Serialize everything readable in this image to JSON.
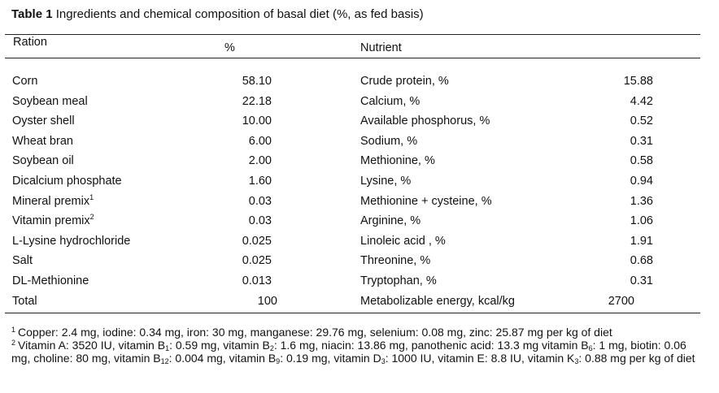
{
  "title": {
    "label": "Table 1",
    "text": "Ingredients and chemical composition of basal diet (%, as fed basis)"
  },
  "headers": {
    "ration": "Ration",
    "percent": "%",
    "nutrient": "Nutrient"
  },
  "rows": [
    {
      "ingredient": "Corn",
      "sup": "",
      "percent": "58.10",
      "nutrient": "Crude protein, %",
      "value": "15.88"
    },
    {
      "ingredient": "Soybean meal",
      "sup": "",
      "percent": "22.18",
      "nutrient": "Calcium, %",
      "value": "4.42"
    },
    {
      "ingredient": "Oyster shell",
      "sup": "",
      "percent": "10.00",
      "nutrient": "Available phosphorus, %",
      "value": "0.52"
    },
    {
      "ingredient": "Wheat bran",
      "sup": "",
      "percent": "6.00",
      "nutrient": "Sodium, %",
      "value": "0.31"
    },
    {
      "ingredient": "Soybean oil",
      "sup": "",
      "percent": "2.00",
      "nutrient": "Methionine, %",
      "value": "0.58"
    },
    {
      "ingredient": "Dicalcium phosphate",
      "sup": "",
      "percent": "1.60",
      "nutrient": "Lysine, %",
      "value": "0.94"
    },
    {
      "ingredient": "Mineral premix",
      "sup": "1",
      "percent": "0.03",
      "nutrient": "Methionine + cysteine, %",
      "value": "1.36"
    },
    {
      "ingredient": "Vitamin premix",
      "sup": "2",
      "percent": "0.03",
      "nutrient": "Arginine, %",
      "value": "1.06"
    },
    {
      "ingredient": "L-Lysine hydrochloride",
      "sup": "",
      "percent": "0.025",
      "nutrient": "Linoleic acid , %",
      "value": "1.91"
    },
    {
      "ingredient": "Salt",
      "sup": "",
      "percent": "0.025",
      "nutrient": "Threonine, %",
      "value": "0.68"
    },
    {
      "ingredient": "DL-Methionine",
      "sup": "",
      "percent": "0.013",
      "nutrient": "Tryptophan, %",
      "value": "0.31"
    },
    {
      "ingredient": "Total",
      "sup": "",
      "percent": "100",
      "nutrient": "Metabolizable energy, kcal/kg",
      "value": "2700"
    }
  ],
  "footnotes": {
    "fn1": {
      "mark": "1",
      "text": "Copper: 2.4 mg, iodine: 0.34 mg, iron: 30 mg, manganese: 29.76 mg, selenium: 0.08 mg, zinc: 25.87 mg per kg of diet"
    },
    "fn2": {
      "mark": "2",
      "p1": "Vitamin A: 3520 IU, vitamin B",
      "s1": "1",
      "p2": ": 0.59 mg, vitamin B",
      "s2": "2",
      "p3": ": 1.6 mg, niacin: 13.86 mg, panothenic acid: 13.3 mg vitamin B",
      "s3": "6",
      "p4": ": 1 mg, biotin:  0.06 mg, choline: 80 mg, vitamin B",
      "s4": "12",
      "p5": ": 0.004 mg, vitamin B",
      "s5": "9",
      "p6": ": 0.19 mg, vitamin D",
      "s6": "3",
      "p7": ": 1000 IU, vitamin E: 8.8 IU, vitamin K",
      "s7": "3",
      "p8": ": 0.88 mg per kg of diet"
    }
  }
}
